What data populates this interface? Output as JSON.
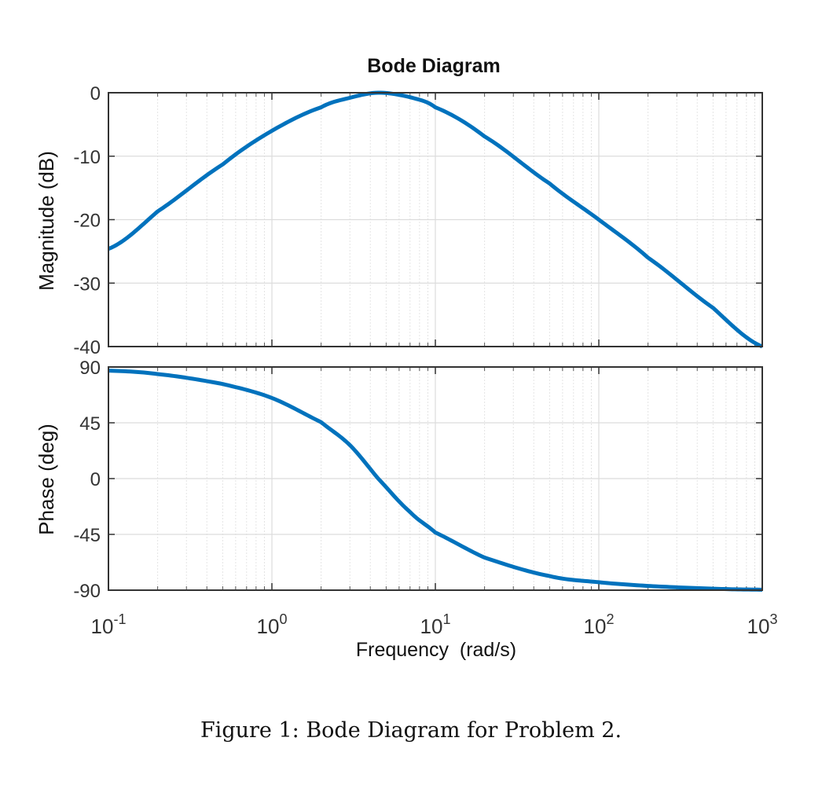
{
  "chart_data": [
    {
      "type": "line",
      "title": "Bode Diagram",
      "ylabel": "Magnitude (dB)",
      "xscale": "log",
      "xlim": [
        0.1,
        1000
      ],
      "ylim": [
        -40,
        0
      ],
      "yticks": [
        0,
        -10,
        -20,
        -30,
        -40
      ],
      "ytick_labels": [
        "0",
        "-10",
        "-20",
        "-30",
        "-40"
      ],
      "grid": true,
      "color": "#0072BD",
      "x": [
        0.1,
        0.2,
        0.5,
        1,
        2,
        3,
        4.47,
        7,
        10,
        20,
        50,
        100,
        200,
        500,
        1000
      ],
      "y": [
        -24.6,
        -18.7,
        -11.3,
        -6.0,
        -2.3,
        -0.8,
        0.0,
        -0.7,
        -2.3,
        -6.9,
        -14.3,
        -20.0,
        -26.0,
        -33.9,
        -40.0
      ]
    },
    {
      "type": "line",
      "ylabel": "Phase (deg)",
      "xlabel": "Frequency  (rad/s)",
      "xscale": "log",
      "xlim": [
        0.1,
        1000
      ],
      "ylim": [
        -90,
        90
      ],
      "yticks": [
        90,
        45,
        0,
        -45,
        -90
      ],
      "ytick_labels": [
        "90",
        "45",
        "0",
        "-45",
        "-90"
      ],
      "xticks": [
        0.1,
        1,
        10,
        100,
        1000
      ],
      "xtick_labels": [
        {
          "base": "10",
          "exp": "-1"
        },
        {
          "base": "10",
          "exp": "0"
        },
        {
          "base": "10",
          "exp": "1"
        },
        {
          "base": "10",
          "exp": "2"
        },
        {
          "base": "10",
          "exp": "3"
        }
      ],
      "grid": true,
      "color": "#0072BD",
      "x": [
        0.1,
        0.2,
        0.5,
        1,
        2,
        3,
        4.47,
        7,
        10,
        20,
        50,
        100,
        200,
        500,
        1000
      ],
      "y": [
        87.1,
        84.3,
        76.3,
        65.0,
        45.5,
        27.0,
        0.0,
        -26.9,
        -43.5,
        -63.7,
        -78.6,
        -83.6,
        -86.6,
        -88.8,
        -89.6
      ]
    }
  ],
  "caption": "Figure 1: Bode Diagram for Problem 2."
}
